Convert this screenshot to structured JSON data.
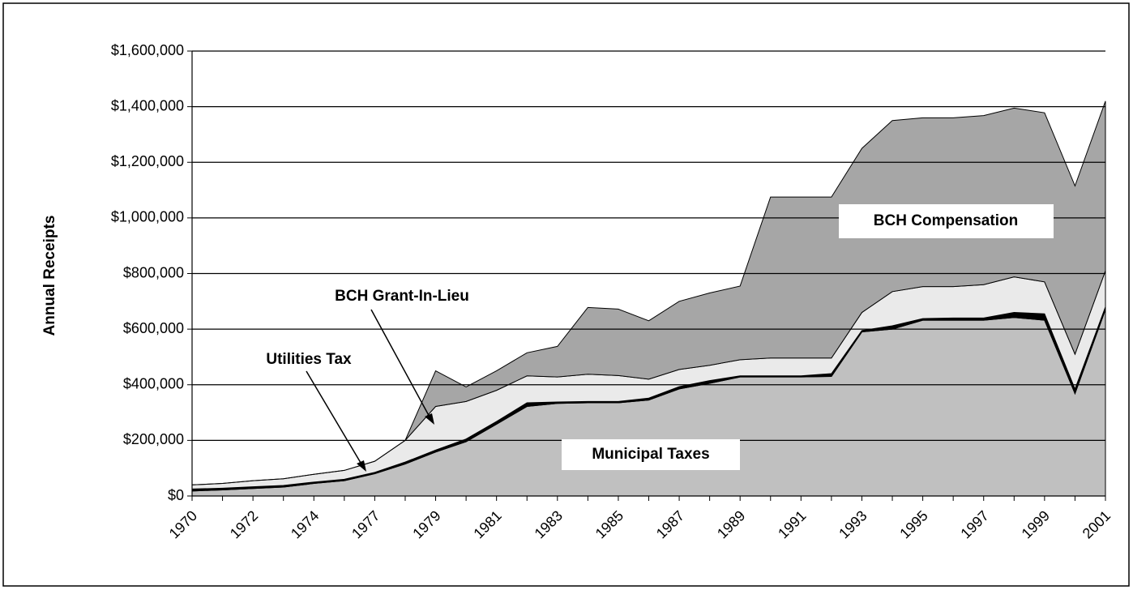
{
  "chart_data": {
    "type": "stacked_area",
    "y_label": "Annual Receipts",
    "categories": [
      "1970",
      null,
      "1972",
      null,
      "1974",
      null,
      "1977",
      null,
      "1979",
      null,
      "1981",
      null,
      "1983",
      null,
      "1985",
      null,
      "1987",
      null,
      "1989",
      null,
      "1991",
      null,
      "1993",
      null,
      "1995",
      null,
      "1997",
      null,
      "1999",
      null,
      "2001"
    ],
    "series": [
      {
        "name": "Municipal Taxes",
        "color": "#c0c0c0",
        "values": [
          18000,
          22000,
          27000,
          32000,
          45000,
          55000,
          80000,
          115000,
          158000,
          195000,
          258000,
          322000,
          333000,
          335000,
          335000,
          345000,
          385000,
          405000,
          428000,
          428000,
          428000,
          430000,
          590000,
          600000,
          632000,
          632000,
          632000,
          642000,
          632000,
          368000,
          670000
        ]
      },
      {
        "name": "Utilities Tax",
        "color": "#000000",
        "values": [
          7000,
          6000,
          6000,
          6000,
          5000,
          5000,
          5000,
          7000,
          7000,
          10000,
          10000,
          13000,
          5000,
          5000,
          5000,
          7000,
          8000,
          10000,
          4000,
          4000,
          4000,
          10000,
          5000,
          12000,
          6000,
          8000,
          8000,
          18000,
          23000,
          17000,
          10000
        ]
      },
      {
        "name": "BCH Grant-In-Lieu",
        "color": "#eaeaea",
        "values": [
          15000,
          17000,
          22000,
          24000,
          28000,
          32000,
          40000,
          78000,
          157000,
          135000,
          112000,
          97000,
          90000,
          98000,
          93000,
          68000,
          62000,
          55000,
          58000,
          64000,
          64000,
          56000,
          65000,
          123000,
          115000,
          113000,
          120000,
          128000,
          115000,
          125000,
          130000
        ]
      },
      {
        "name": "BCH  Compensation",
        "color": "#a6a6a6",
        "values": [
          0,
          0,
          0,
          0,
          0,
          0,
          0,
          0,
          128000,
          52000,
          70000,
          83000,
          110000,
          240000,
          239000,
          210000,
          245000,
          260000,
          265000,
          579000,
          579000,
          579000,
          590000,
          615000,
          607000,
          607000,
          608000,
          607000,
          608000,
          605000,
          610000
        ]
      }
    ],
    "ylim": [
      0,
      1600000
    ],
    "yticks": [
      {
        "value": 0,
        "label": "$0"
      },
      {
        "value": 200000,
        "label": "$200,000"
      },
      {
        "value": 400000,
        "label": "$400,000"
      },
      {
        "value": 600000,
        "label": "$600,000"
      },
      {
        "value": 800000,
        "label": "$800,000"
      },
      {
        "value": 1000000,
        "label": "$1,000,000"
      },
      {
        "value": 1200000,
        "label": "$1,200,000"
      },
      {
        "value": 1400000,
        "label": "$1,400,000"
      },
      {
        "value": 1600000,
        "label": "$1,600,000"
      }
    ],
    "grid": true
  }
}
